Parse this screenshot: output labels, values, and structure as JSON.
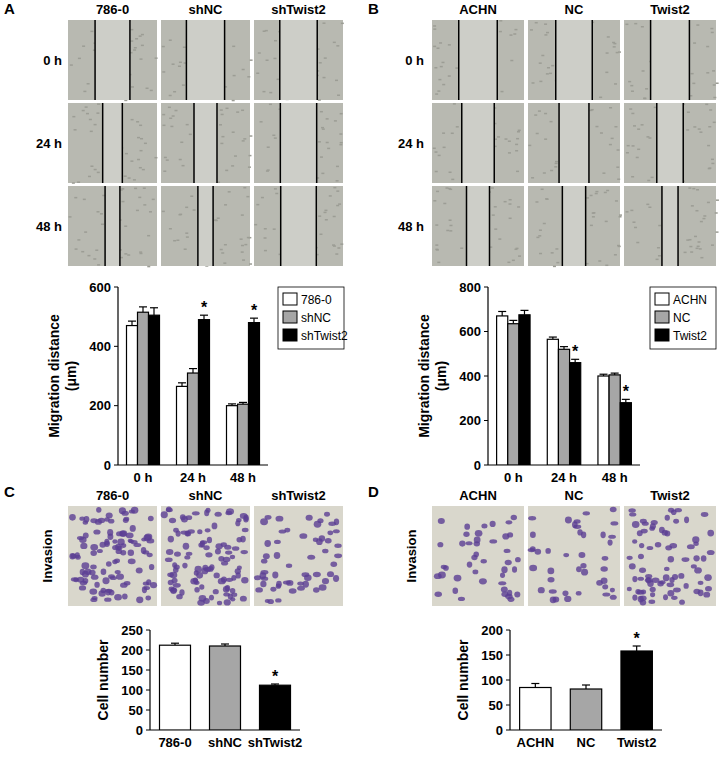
{
  "chart_data": [
    {
      "panel": "A",
      "type": "bar",
      "image_headers": [
        "786-0",
        "shNC",
        "shTwist2"
      ],
      "image_rows": [
        "0 h",
        "24 h",
        "48 h"
      ],
      "y_label": [
        "Migration distance",
        "(μm)"
      ],
      "categories": [
        "0 h",
        "24 h",
        "48 h"
      ],
      "series": [
        {
          "name": "786-0",
          "color": "#ffffff",
          "values": [
            470,
            265,
            200
          ],
          "errors": [
            15,
            12,
            6
          ],
          "annotations": [
            null,
            null,
            null
          ]
        },
        {
          "name": "shNC",
          "color": "#a6a6a6",
          "values": [
            515,
            310,
            205
          ],
          "errors": [
            18,
            15,
            6
          ],
          "annotations": [
            null,
            null,
            null
          ]
        },
        {
          "name": "shTwist2",
          "color": "#000000",
          "values": [
            505,
            490,
            480
          ],
          "errors": [
            25,
            15,
            15
          ],
          "annotations": [
            null,
            "*",
            "*"
          ]
        }
      ],
      "ylim": [
        0,
        600
      ],
      "yticks": [
        0,
        200,
        400,
        600
      ],
      "legend": "right"
    },
    {
      "panel": "B",
      "type": "bar",
      "image_headers": [
        "ACHN",
        "NC",
        "Twist2"
      ],
      "image_rows": [
        "0 h",
        "24 h",
        "48 h"
      ],
      "y_label": [
        "Migration distance",
        "(μm)"
      ],
      "categories": [
        "0 h",
        "24 h",
        "48 h"
      ],
      "series": [
        {
          "name": "ACHN",
          "color": "#ffffff",
          "values": [
            670,
            565,
            400
          ],
          "errors": [
            20,
            10,
            8
          ],
          "annotations": [
            null,
            null,
            null
          ]
        },
        {
          "name": "NC",
          "color": "#a6a6a6",
          "values": [
            635,
            520,
            405
          ],
          "errors": [
            15,
            12,
            8
          ],
          "annotations": [
            null,
            null,
            null
          ]
        },
        {
          "name": "Twist2",
          "color": "#000000",
          "values": [
            675,
            460,
            280
          ],
          "errors": [
            20,
            15,
            15
          ],
          "annotations": [
            null,
            "*",
            "*"
          ]
        }
      ],
      "ylim": [
        0,
        800
      ],
      "yticks": [
        0,
        200,
        400,
        600,
        800
      ],
      "legend": "right"
    },
    {
      "panel": "C",
      "type": "bar",
      "image_headers": [
        "786-0",
        "shNC",
        "shTwist2"
      ],
      "image_rows": [
        "Invasion"
      ],
      "y_label": [
        "Cell number"
      ],
      "categories": [
        "786-0",
        "shNC",
        "shTwist2"
      ],
      "values": [
        212,
        210,
        112
      ],
      "errors": [
        5,
        5,
        3
      ],
      "colors": [
        "#ffffff",
        "#a6a6a6",
        "#000000"
      ],
      "annotations": [
        null,
        null,
        "*"
      ],
      "ylim": [
        0,
        250
      ],
      "yticks": [
        0,
        50,
        100,
        150,
        200,
        250
      ]
    },
    {
      "panel": "D",
      "type": "bar",
      "image_headers": [
        "ACHN",
        "NC",
        "Twist2"
      ],
      "image_rows": [
        "Invasion"
      ],
      "y_label": [
        "Cell number"
      ],
      "categories": [
        "ACHN",
        "NC",
        "Twist2"
      ],
      "values": [
        85,
        82,
        158
      ],
      "errors": [
        8,
        8,
        10
      ],
      "colors": [
        "#ffffff",
        "#a6a6a6",
        "#000000"
      ],
      "annotations": [
        null,
        null,
        "*"
      ],
      "ylim": [
        0,
        200
      ],
      "yticks": [
        0,
        50,
        100,
        150,
        200
      ]
    }
  ]
}
